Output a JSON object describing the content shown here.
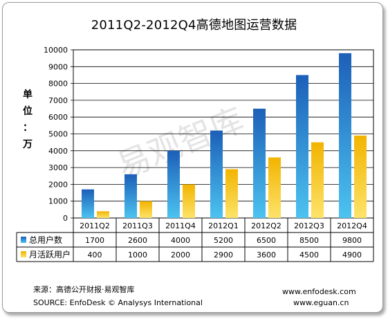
{
  "chart_data": {
    "type": "bar",
    "title": "2011Q2-2012Q4高德地图运营数据",
    "ylabel": [
      "单",
      "位",
      "：",
      "万"
    ],
    "categories": [
      "2011Q2",
      "2011Q3",
      "2011Q4",
      "2012Q1",
      "2012Q2",
      "2012Q3",
      "2012Q4"
    ],
    "ylim": [
      0,
      10000
    ],
    "yticks": [
      0,
      1000,
      2000,
      3000,
      4000,
      5000,
      6000,
      7000,
      8000,
      9000,
      10000
    ],
    "grid": true,
    "legend_placement": "data-table-rows",
    "series": [
      {
        "name": "总用户数",
        "values": [
          1700,
          2600,
          4000,
          5200,
          6500,
          8500,
          9800
        ],
        "color": "#1f6fc4"
      },
      {
        "name": "月活跃用户",
        "values": [
          400,
          1000,
          2000,
          2900,
          3600,
          4500,
          4900
        ],
        "color": "#f5b800"
      }
    ],
    "data_table": [
      [
        "1700",
        "2600",
        "4000",
        "5200",
        "6500",
        "8500",
        "9800"
      ],
      [
        "400",
        "1000",
        "2000",
        "2900",
        "3600",
        "4500",
        "4900"
      ]
    ]
  },
  "watermark": "易观智库",
  "footer": {
    "source_cn": "来源：高德公开财报·易观智库",
    "source_en": "SOURCE: EnfoDesk © Analysys International",
    "url1": "www.enfodesk.com",
    "url2": "www.eguan.cn"
  }
}
